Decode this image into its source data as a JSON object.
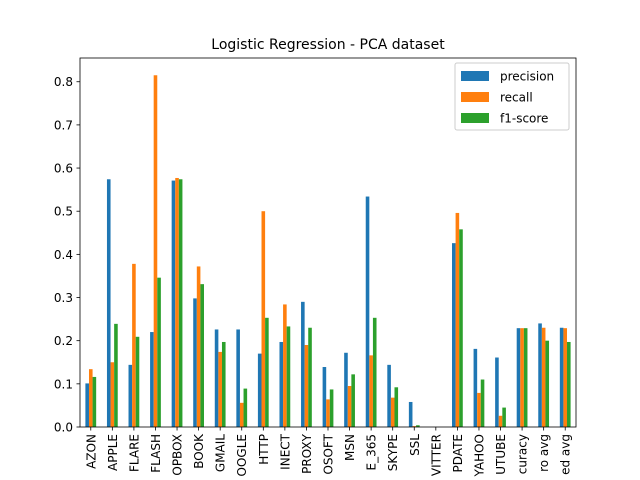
{
  "chart_data": {
    "type": "bar",
    "title": "Logistic Regression - PCA dataset",
    "xlabel": "",
    "ylabel": "",
    "ylim": [
      0,
      0.855
    ],
    "yticks": [
      0.0,
      0.1,
      0.2,
      0.3,
      0.4,
      0.5,
      0.6,
      0.7,
      0.8
    ],
    "ytick_labels": [
      "0.0",
      "0.1",
      "0.2",
      "0.3",
      "0.4",
      "0.5",
      "0.6",
      "0.7",
      "0.8"
    ],
    "legend_position": "top-right",
    "grid": false,
    "category_labels_visible": [
      "AZON",
      "APPLE",
      "FLARE",
      "FLASH",
      "OPBOX",
      "BOOK",
      "GMAIL",
      "OOGLE",
      "HTTP",
      "INECT",
      "PROXY",
      "OSOFT",
      "MSN",
      "E_365",
      "SKYPE",
      "SSL",
      "VITTER",
      "PDATE",
      "YAHOO",
      "UTUBE",
      "curacy",
      "ro avg",
      "ed avg"
    ],
    "series": [
      {
        "name": "precision",
        "color": "#1f77b4",
        "values": [
          0.101,
          0.574,
          0.144,
          0.22,
          0.571,
          0.298,
          0.226,
          0.226,
          0.17,
          0.197,
          0.29,
          0.139,
          0.172,
          0.534,
          0.144,
          0.058,
          0.0,
          0.426,
          0.181,
          0.161,
          0.229,
          0.24,
          0.23
        ]
      },
      {
        "name": "recall",
        "color": "#ff7f0e",
        "values": [
          0.134,
          0.15,
          0.378,
          0.815,
          0.577,
          0.372,
          0.174,
          0.056,
          0.5,
          0.284,
          0.19,
          0.064,
          0.095,
          0.166,
          0.068,
          0.002,
          0.0,
          0.496,
          0.079,
          0.026,
          0.229,
          0.23,
          0.229
        ]
      },
      {
        "name": "f1-score",
        "color": "#2ca02c",
        "values": [
          0.116,
          0.239,
          0.209,
          0.346,
          0.574,
          0.331,
          0.197,
          0.089,
          0.253,
          0.233,
          0.23,
          0.087,
          0.122,
          0.253,
          0.092,
          0.004,
          0.0,
          0.458,
          0.11,
          0.045,
          0.229,
          0.2,
          0.197
        ]
      }
    ]
  }
}
